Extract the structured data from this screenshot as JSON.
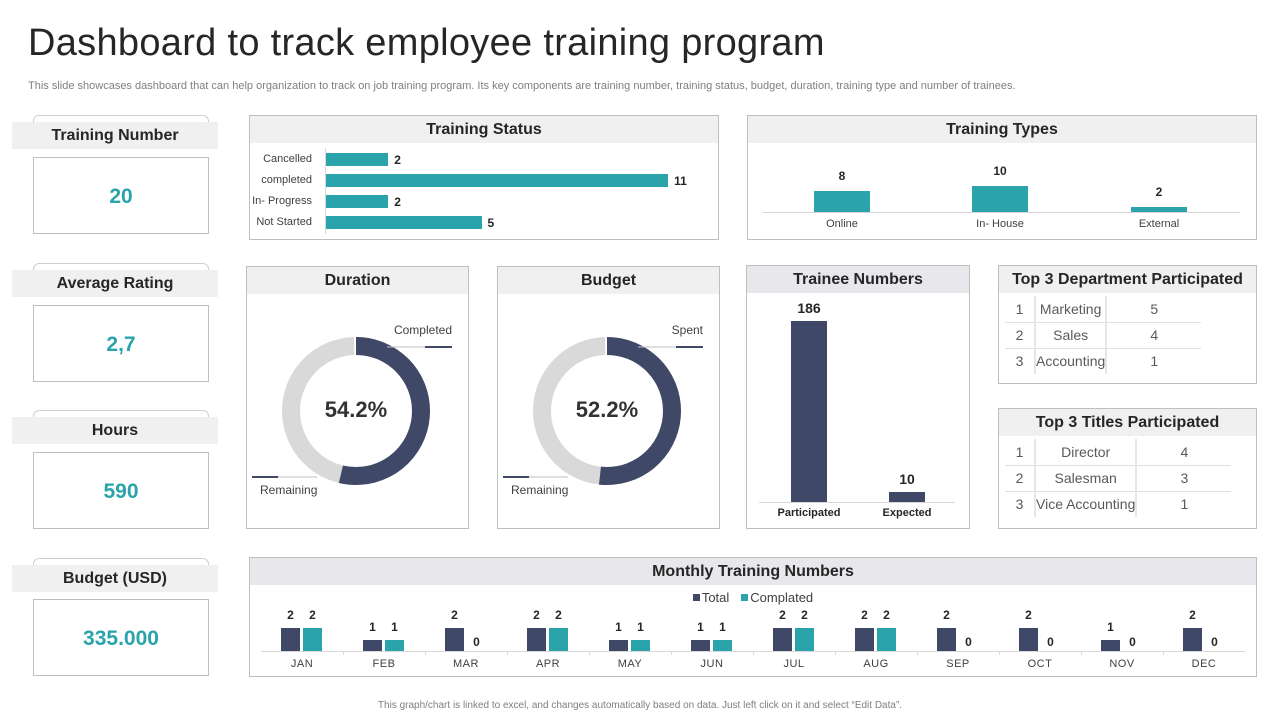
{
  "title": "Dashboard to track employee training program",
  "subtitle": "This slide showcases dashboard that can help organization to track on job training program. Its key components are training number, training status, budget, duration, training type and number of trainees.",
  "colors": {
    "teal": "#2aa3ab",
    "navy": "#404868",
    "gray": "#d9d9d9"
  },
  "kpis": [
    {
      "label": "Training Number",
      "value": "20"
    },
    {
      "label": "Average Rating",
      "value": "2,7"
    },
    {
      "label": "Hours",
      "value": "590"
    },
    {
      "label": "Budget (USD)",
      "value": "335.000"
    }
  ],
  "chart_data": [
    {
      "type": "bar",
      "orientation": "horizontal",
      "title": "Training Status",
      "categories": [
        "Cancelled",
        "completed",
        "In- Progress",
        "Not Started"
      ],
      "values": [
        2,
        11,
        2,
        5
      ]
    },
    {
      "type": "bar",
      "title": "Training Types",
      "categories": [
        "Online",
        "In- House",
        "External"
      ],
      "values": [
        8,
        10,
        2
      ]
    },
    {
      "type": "pie",
      "donut": true,
      "title": "Duration",
      "center_label": "54.2%",
      "slices": [
        {
          "name": "Completed",
          "value": 54.2
        },
        {
          "name": "Remaining",
          "value": 45.8
        }
      ]
    },
    {
      "type": "pie",
      "donut": true,
      "title": "Budget",
      "center_label": "52.2%",
      "slices": [
        {
          "name": "Spent",
          "value": 52.2
        },
        {
          "name": "Remaining",
          "value": 47.8
        }
      ]
    },
    {
      "type": "bar",
      "title": "Trainee Numbers",
      "categories": [
        "Participated",
        "Expected"
      ],
      "values": [
        186,
        10
      ]
    },
    {
      "type": "bar",
      "title": "Monthly Training Numbers",
      "legend": "top",
      "categories": [
        "JAN",
        "FEB",
        "MAR",
        "APR",
        "MAY",
        "JUN",
        "JUL",
        "AUG",
        "SEP",
        "OCT",
        "NOV",
        "DEC"
      ],
      "series": [
        {
          "name": "Total",
          "values": [
            2,
            1,
            2,
            2,
            1,
            1,
            2,
            2,
            2,
            2,
            1,
            2
          ]
        },
        {
          "name": "Complated",
          "values": [
            2,
            1,
            0,
            2,
            1,
            1,
            2,
            2,
            0,
            0,
            0,
            0
          ]
        }
      ]
    }
  ],
  "dept_table": {
    "title": "Top 3 Department Participated",
    "rows": [
      [
        "1",
        "Marketing",
        "5"
      ],
      [
        "2",
        "Sales",
        "4"
      ],
      [
        "3",
        "Accounting",
        "1"
      ]
    ]
  },
  "titles_table": {
    "title": "Top 3 Titles Participated",
    "rows": [
      [
        "1",
        "Director",
        "4"
      ],
      [
        "2",
        "Salesman",
        "3"
      ],
      [
        "3",
        "Vice Accounting",
        "1"
      ]
    ]
  },
  "footer": "This graph/chart is linked to excel, and changes automatically based on data. Just left click on it and select “Edit Data”."
}
